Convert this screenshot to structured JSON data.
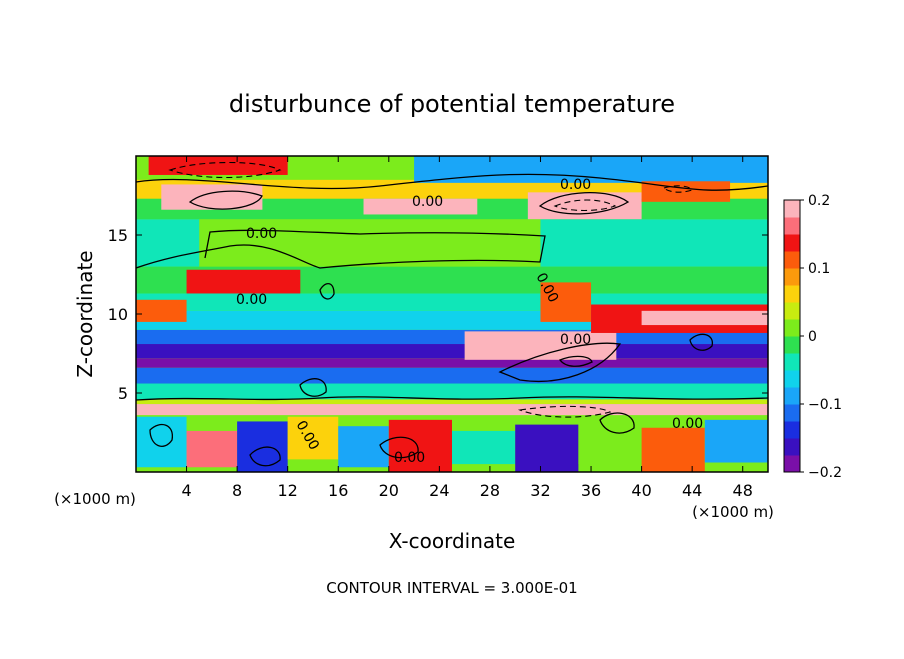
{
  "chart_data": {
    "type": "heatmap",
    "title": "disturbunce of potential temperature",
    "xlabel": "X-coordinate",
    "ylabel": "Z-coordinate",
    "x_unit": "(×1000 m)",
    "footer": "CONTOUR INTERVAL = 3.000E-01",
    "x_range": [
      0,
      50
    ],
    "y_range": [
      0,
      20
    ],
    "x_ticks": [
      4,
      8,
      12,
      16,
      20,
      24,
      28,
      32,
      36,
      40,
      44,
      48
    ],
    "y_ticks": [
      5,
      10,
      15
    ],
    "colorbar": {
      "range": [
        -0.2,
        0.2
      ],
      "tick_labels": [
        "0.2",
        "0.1",
        "0",
        "−0.1",
        "−0.2"
      ],
      "colors": [
        "#7a0fa8",
        "#3a10c0",
        "#1a2ee0",
        "#1a6cf0",
        "#1aa6f8",
        "#10d2ec",
        "#10e6b8",
        "#2ee050",
        "#7cec1c",
        "#c8ec10",
        "#fcd20c",
        "#fc9a0c",
        "#fc5c0c",
        "#f01414",
        "#fc6e7a",
        "#fcb4bc"
      ]
    },
    "contour_labels": [
      "0.00",
      "0.00",
      "0.00",
      "0.00",
      "0.00",
      "0.00",
      "0.00",
      "0.00",
      "0.00"
    ],
    "regions": [
      {
        "x0": 0,
        "x1": 50,
        "y0": 0,
        "y1": 20,
        "v": 0.0
      },
      {
        "x0": 0,
        "x1": 50,
        "y0": 4.3,
        "y1": 4.6,
        "v": 0.03
      },
      {
        "x0": 0,
        "x1": 50,
        "y0": 4.6,
        "y1": 5.6,
        "v": -0.04
      },
      {
        "x0": 0,
        "x1": 50,
        "y0": 5.6,
        "y1": 6.6,
        "v": -0.12
      },
      {
        "x0": 0,
        "x1": 50,
        "y0": 6.6,
        "y1": 7.2,
        "v": -0.19
      },
      {
        "x0": 0,
        "x1": 50,
        "y0": 7.2,
        "y1": 8.1,
        "v": -0.16
      },
      {
        "x0": 0,
        "x1": 50,
        "y0": 8.1,
        "y1": 9.0,
        "v": -0.11
      },
      {
        "x0": 0,
        "x1": 50,
        "y0": 9.0,
        "y1": 10.2,
        "v": -0.06
      },
      {
        "x0": 0,
        "x1": 50,
        "y0": 10.2,
        "y1": 11.3,
        "v": -0.03
      },
      {
        "x0": 0,
        "x1": 50,
        "y0": 11.3,
        "y1": 13.0,
        "v": -0.01
      },
      {
        "x0": 5,
        "x1": 32,
        "y0": 13.0,
        "y1": 15.5,
        "v": 0.01
      },
      {
        "x0": 32,
        "x1": 50,
        "y0": 13.0,
        "y1": 16.0,
        "v": -0.04
      },
      {
        "x0": 0,
        "x1": 5,
        "y0": 13.0,
        "y1": 16.0,
        "v": -0.05
      },
      {
        "x0": 0,
        "x1": 50,
        "y0": 16.0,
        "y1": 17.3,
        "v": -0.01
      },
      {
        "x0": 0,
        "x1": 50,
        "y0": 17.3,
        "y1": 18.5,
        "v": 0.06
      },
      {
        "x0": 0,
        "x1": 50,
        "y0": 18.5,
        "y1": 20.0,
        "v": 0.02
      },
      {
        "x0": 22,
        "x1": 50,
        "y0": 18.3,
        "y1": 20.0,
        "v": -0.1
      },
      {
        "x0": 1,
        "x1": 12,
        "y0": 18.8,
        "y1": 20.0,
        "v": 0.15
      },
      {
        "x0": 2,
        "x1": 10,
        "y0": 16.6,
        "y1": 18.2,
        "v": 0.2
      },
      {
        "x0": 18,
        "x1": 27,
        "y0": 16.3,
        "y1": 17.3,
        "v": 0.18
      },
      {
        "x0": 31,
        "x1": 40,
        "y0": 16.0,
        "y1": 17.7,
        "v": 0.2
      },
      {
        "x0": 40,
        "x1": 47,
        "y0": 17.1,
        "y1": 18.4,
        "v": 0.1
      },
      {
        "x0": 4,
        "x1": 13,
        "y0": 11.3,
        "y1": 12.8,
        "v": 0.14
      },
      {
        "x0": 0,
        "x1": 4,
        "y0": 9.5,
        "y1": 10.9,
        "v": 0.12
      },
      {
        "x0": 32,
        "x1": 36,
        "y0": 9.5,
        "y1": 12.0,
        "v": 0.12
      },
      {
        "x0": 26,
        "x1": 38,
        "y0": 7.1,
        "y1": 8.9,
        "v": 0.2
      },
      {
        "x0": 36,
        "x1": 50,
        "y0": 8.8,
        "y1": 10.6,
        "v": 0.14
      },
      {
        "x0": 40,
        "x1": 50,
        "y0": 9.3,
        "y1": 10.2,
        "v": 0.2
      },
      {
        "x0": 0,
        "x1": 50,
        "y0": 3.6,
        "y1": 4.3,
        "v": 0.2
      },
      {
        "x0": 0,
        "x1": 4,
        "y0": 0.3,
        "y1": 3.5,
        "v": -0.06
      },
      {
        "x0": 4,
        "x1": 8,
        "y0": 0.3,
        "y1": 2.6,
        "v": 0.16
      },
      {
        "x0": 8,
        "x1": 12,
        "y0": 0.0,
        "y1": 3.2,
        "v": -0.14
      },
      {
        "x0": 12,
        "x1": 16,
        "y0": 0.8,
        "y1": 3.5,
        "v": 0.05
      },
      {
        "x0": 16,
        "x1": 20,
        "y0": 0.3,
        "y1": 2.9,
        "v": -0.1
      },
      {
        "x0": 20,
        "x1": 25,
        "y0": 0.0,
        "y1": 3.3,
        "v": 0.13
      },
      {
        "x0": 25,
        "x1": 30,
        "y0": 0.5,
        "y1": 2.6,
        "v": -0.04
      },
      {
        "x0": 30,
        "x1": 35,
        "y0": 0.0,
        "y1": 3.0,
        "v": -0.16
      },
      {
        "x0": 35,
        "x1": 40,
        "y0": 0.5,
        "y1": 3.4,
        "v": 0.02
      },
      {
        "x0": 40,
        "x1": 45,
        "y0": 0.0,
        "y1": 2.8,
        "v": 0.12
      },
      {
        "x0": 45,
        "x1": 50,
        "y0": 0.6,
        "y1": 3.3,
        "v": -0.09
      }
    ]
  }
}
